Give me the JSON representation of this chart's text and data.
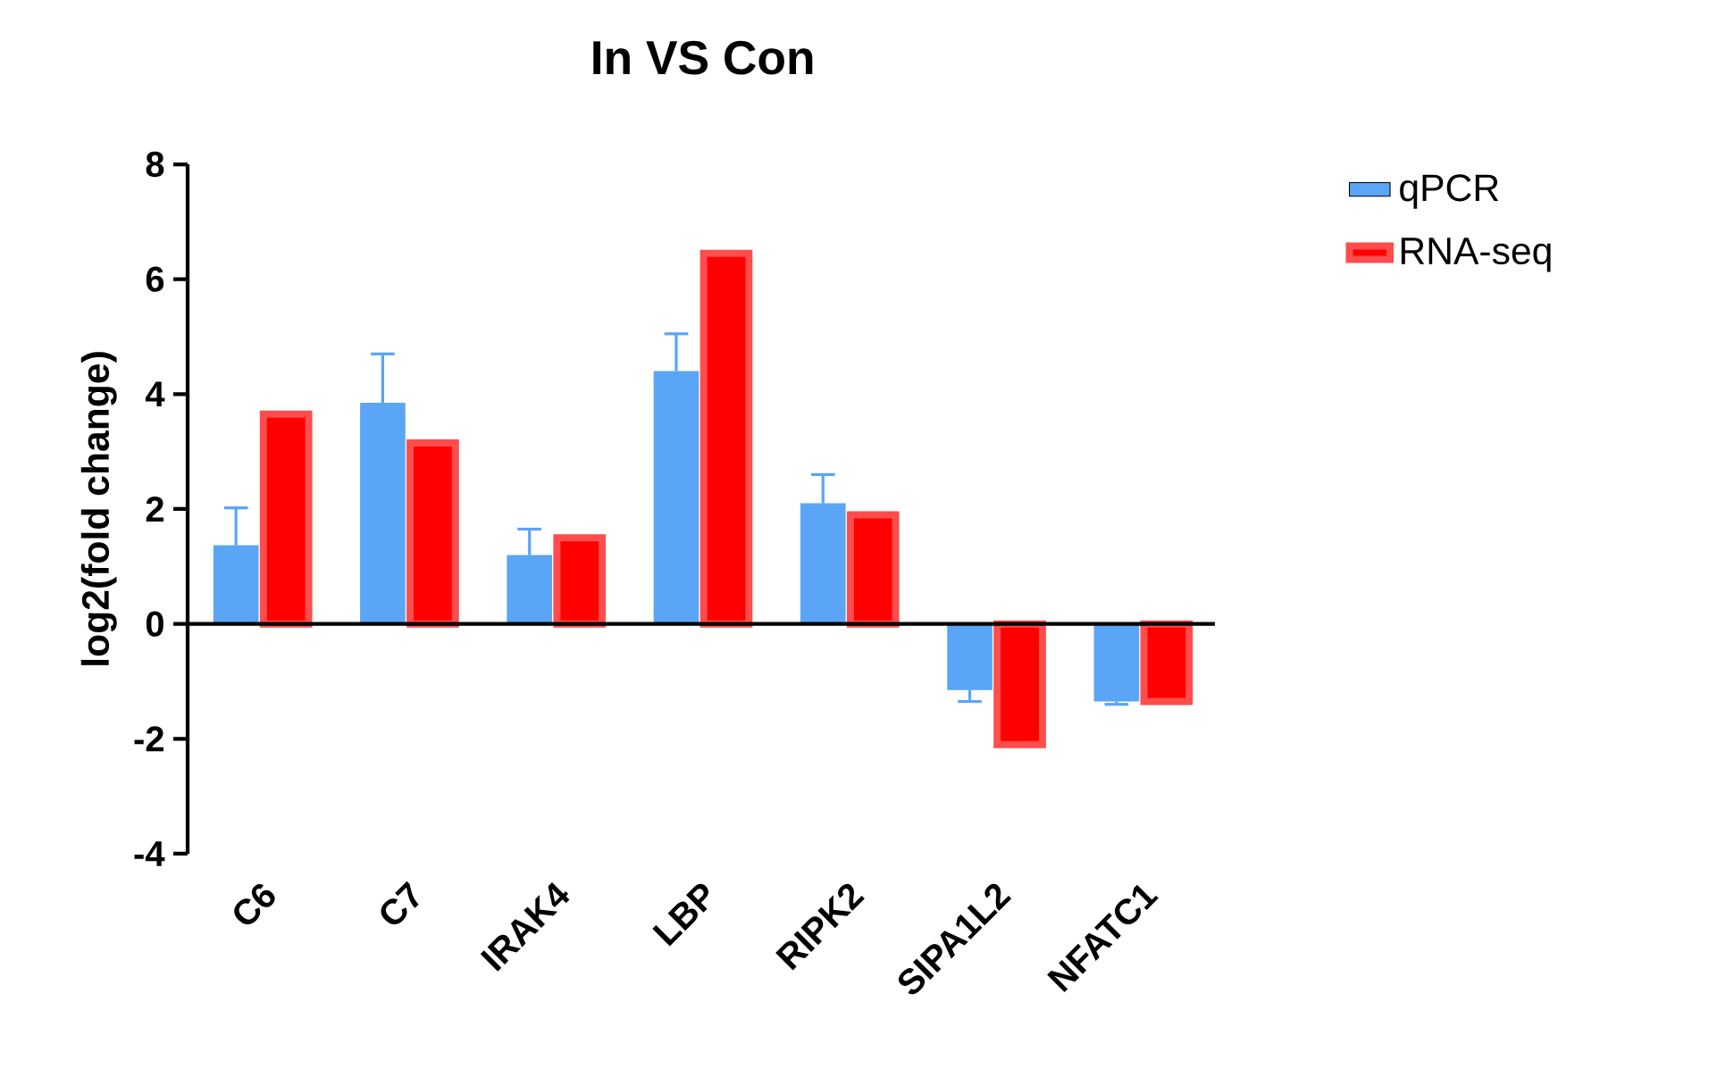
{
  "chart_data": {
    "type": "bar",
    "title": "In VS Con",
    "ylabel": "log2(fold change)",
    "categories": [
      "C6",
      "C7",
      "IRAK4",
      "LBP",
      "RIPK2",
      "SIPA1L2",
      "NFATC1"
    ],
    "series": [
      {
        "name": "qPCR",
        "color": "#5aa5f5",
        "values": [
          1.37,
          3.85,
          1.2,
          4.4,
          2.1,
          -1.15,
          -1.35
        ],
        "errors": [
          0.65,
          0.85,
          0.45,
          0.65,
          0.5,
          0.2,
          0.05
        ]
      },
      {
        "name": "RNA-seq",
        "color": "#ff0000",
        "values": [
          3.65,
          3.15,
          1.5,
          6.45,
          1.9,
          -2.1,
          -1.35
        ]
      }
    ],
    "ref_lines": [
      {
        "axis": "y",
        "value": 0
      }
    ],
    "ylim": [
      -4,
      8
    ],
    "yticks": [
      -4,
      -2,
      0,
      2,
      4,
      6,
      8
    ],
    "grid": false,
    "legend": "top right"
  }
}
